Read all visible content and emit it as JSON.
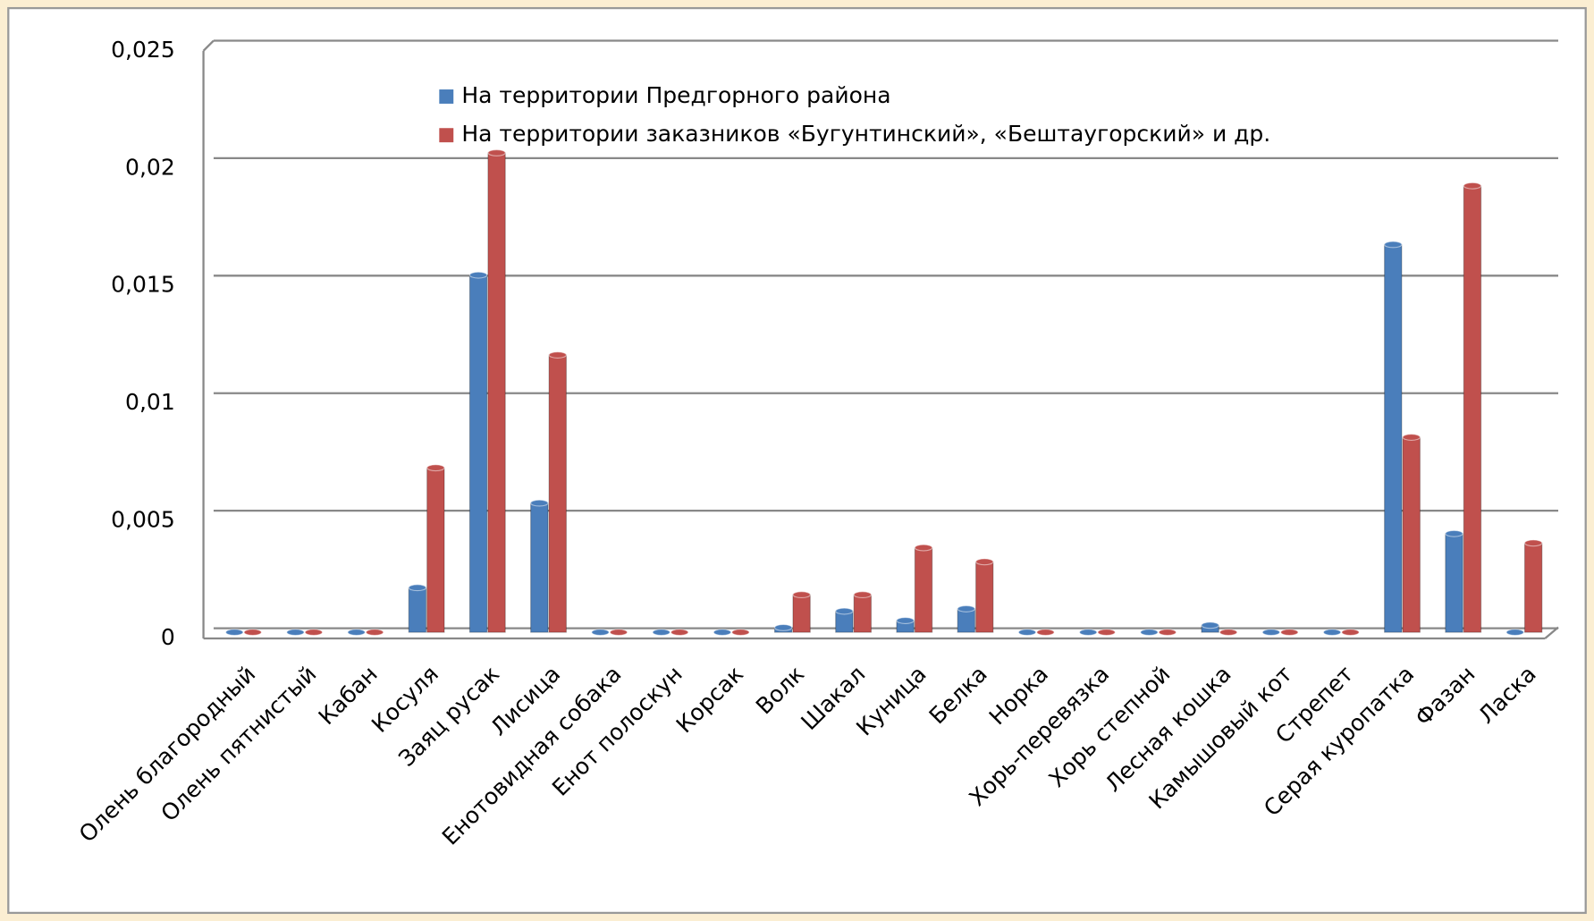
{
  "chart_data": {
    "type": "bar",
    "categories": [
      "Олень благородный",
      "Олень пятнистый",
      "Кабан",
      "Косуля",
      "Заяц русак",
      "Лисица",
      "Енотовидная собака",
      "Енот полоскун",
      "Корсак",
      "Волк",
      "Шакал",
      "Куница",
      "Белка",
      "Норка",
      "Хорь-перевязка",
      "Хорь степной",
      "Лесная кошка",
      "Камышовый кот",
      "Стрепет",
      "Серая куропатка",
      "Фазан",
      "Ласка"
    ],
    "series": [
      {
        "name": "На территории  Предгорного района",
        "color": "#4a7ebb",
        "values": [
          0,
          0,
          0,
          0.0019,
          0.0152,
          0.0055,
          0,
          0,
          0,
          0.0002,
          0.0009,
          0.0005,
          0.001,
          0,
          0,
          0,
          0.0003,
          0,
          0,
          0.0165,
          0.0042,
          0
        ]
      },
      {
        "name": "На территории  заказников «Бугунтинский», «Бештаугорский» и др.",
        "color": "#c0504d",
        "values": [
          0,
          0,
          0,
          0.007,
          0.0204,
          0.0118,
          0,
          0,
          0,
          0.0016,
          0.0016,
          0.0036,
          0.003,
          0,
          0,
          0,
          0,
          0,
          0,
          0.0083,
          0.019,
          0.0038
        ]
      }
    ],
    "ylim": [
      0,
      0.025
    ],
    "yticks": [
      0,
      {
        "value": 0.005,
        "label": "0,005"
      },
      {
        "value": 0.01,
        "label": "0,01"
      },
      {
        "value": 0.015,
        "label": "0,015"
      },
      {
        "value": 0.02,
        "label": "0,02"
      },
      {
        "value": 0.025,
        "label": "0,025"
      }
    ],
    "grid": true,
    "legend": "top"
  }
}
